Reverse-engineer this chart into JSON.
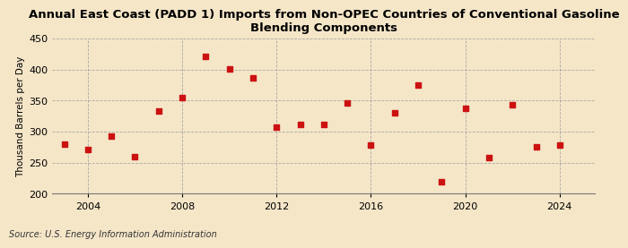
{
  "title": "Annual East Coast (PADD 1) Imports from Non-OPEC Countries of Conventional Gasoline\nBlending Components",
  "ylabel": "Thousand Barrels per Day",
  "source": "Source: U.S. Energy Information Administration",
  "background_color": "#f5e6c8",
  "plot_background_color": "#f5e6c8",
  "marker_color": "#cc1111",
  "years": [
    2003,
    2004,
    2005,
    2006,
    2007,
    2008,
    2009,
    2010,
    2011,
    2012,
    2013,
    2014,
    2015,
    2016,
    2017,
    2018,
    2019,
    2020,
    2021,
    2022,
    2023,
    2024
  ],
  "values": [
    280,
    272,
    293,
    260,
    333,
    355,
    422,
    401,
    386,
    307,
    312,
    311,
    347,
    278,
    331,
    375,
    220,
    337,
    259,
    343,
    275,
    278
  ],
  "ylim": [
    200,
    450
  ],
  "yticks": [
    200,
    250,
    300,
    350,
    400,
    450
  ],
  "xlim": [
    2002.5,
    2025.5
  ],
  "xticks": [
    2004,
    2008,
    2012,
    2016,
    2020,
    2024
  ],
  "grid_color": "#999999",
  "title_fontsize": 9.5,
  "ylabel_fontsize": 7.5,
  "tick_fontsize": 8,
  "source_fontsize": 7,
  "marker_size": 4
}
